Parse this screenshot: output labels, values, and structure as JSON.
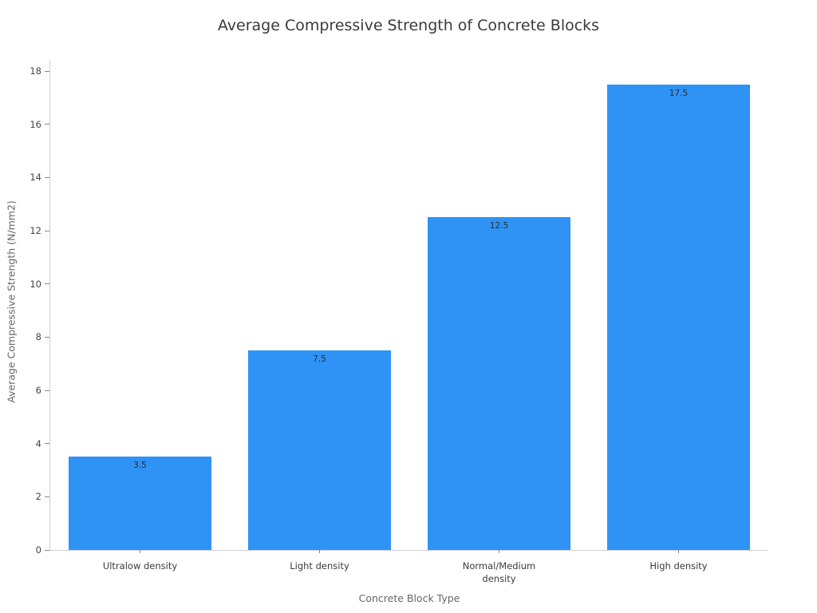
{
  "chart_data": {
    "type": "bar",
    "title": "Average Compressive Strength of Concrete Blocks",
    "xlabel": "Concrete Block Type",
    "ylabel": "Average Compressive Strength (N/mm2)",
    "categories": [
      "Ultralow density",
      "Light density",
      "Normal/Medium density",
      "High density"
    ],
    "category_display_lines": [
      [
        "Ultralow density"
      ],
      [
        "Light density"
      ],
      [
        "Normal/Medium",
        "density"
      ],
      [
        "High density"
      ]
    ],
    "values": [
      3.5,
      7.5,
      12.5,
      17.5
    ],
    "bar_labels": [
      "3.5",
      "7.5",
      "12.5",
      "17.5"
    ],
    "bar_label_position": "inside-top",
    "ylim": [
      0,
      18
    ],
    "yticks": [
      0,
      2,
      4,
      6,
      8,
      10,
      12,
      14,
      16,
      18
    ],
    "grid": false,
    "legend": "none",
    "colors": {
      "bar": "#2E93F5",
      "title_text": "#3a3a3a",
      "axis_title_text": "#666666",
      "tick_label_text": "#444444",
      "category_label_text": "#3b3b3b",
      "bar_label_text": "#2d2d2d",
      "spine": "#d0d0d0",
      "tick_mark": "#888888",
      "background": "#ffffff"
    }
  }
}
